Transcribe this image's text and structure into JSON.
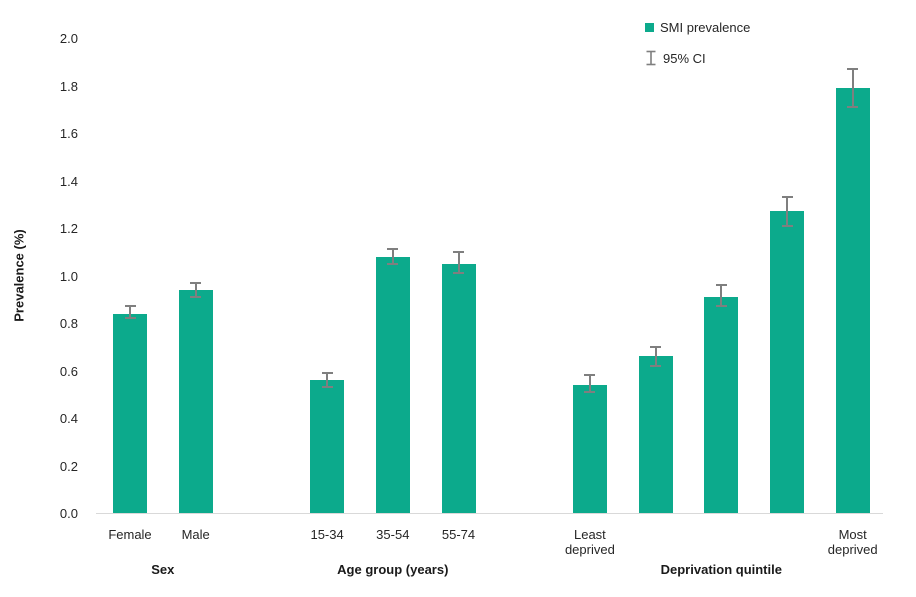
{
  "chart_data": {
    "type": "bar",
    "title": "",
    "ylabel": "Prevalence (%)",
    "xlabel": "",
    "ylim": [
      0.0,
      2.0
    ],
    "ytick_labels": [
      "0.0",
      "0.2",
      "0.4",
      "0.6",
      "0.8",
      "1.0",
      "1.2",
      "1.4",
      "1.6",
      "1.8",
      "2.0"
    ],
    "grid": "off",
    "legend_position": "top-right",
    "legend": [
      {
        "label": "SMI prevalence",
        "marker": "bar-swatch"
      },
      {
        "label": "95% CI",
        "marker": "error-bar"
      }
    ],
    "groups": [
      {
        "label": "Sex",
        "bars": [
          {
            "category": "Female",
            "value": 0.84,
            "ci_low": 0.82,
            "ci_high": 0.87
          },
          {
            "category": "Male",
            "value": 0.94,
            "ci_low": 0.91,
            "ci_high": 0.97
          }
        ]
      },
      {
        "label": "Age group (years)",
        "bars": [
          {
            "category": "15-34",
            "value": 0.56,
            "ci_low": 0.53,
            "ci_high": 0.59
          },
          {
            "category": "35-54",
            "value": 1.08,
            "ci_low": 1.05,
            "ci_high": 1.11
          },
          {
            "category": "55-74",
            "value": 1.05,
            "ci_low": 1.01,
            "ci_high": 1.1
          }
        ]
      },
      {
        "label": "Deprivation quintile",
        "bars": [
          {
            "category": "Least deprived",
            "value": 0.54,
            "ci_low": 0.51,
            "ci_high": 0.58
          },
          {
            "category": "",
            "value": 0.66,
            "ci_low": 0.62,
            "ci_high": 0.7
          },
          {
            "category": "",
            "value": 0.91,
            "ci_low": 0.87,
            "ci_high": 0.96
          },
          {
            "category": "",
            "value": 1.27,
            "ci_low": 1.21,
            "ci_high": 1.33
          },
          {
            "category": "Most deprived",
            "value": 1.79,
            "ci_low": 1.71,
            "ci_high": 1.87
          }
        ]
      }
    ],
    "colors": {
      "bar": "#0caa8c",
      "error_bar": "#7f7f7f",
      "axis_line": "#d9d9d9",
      "text": "#262626"
    }
  }
}
